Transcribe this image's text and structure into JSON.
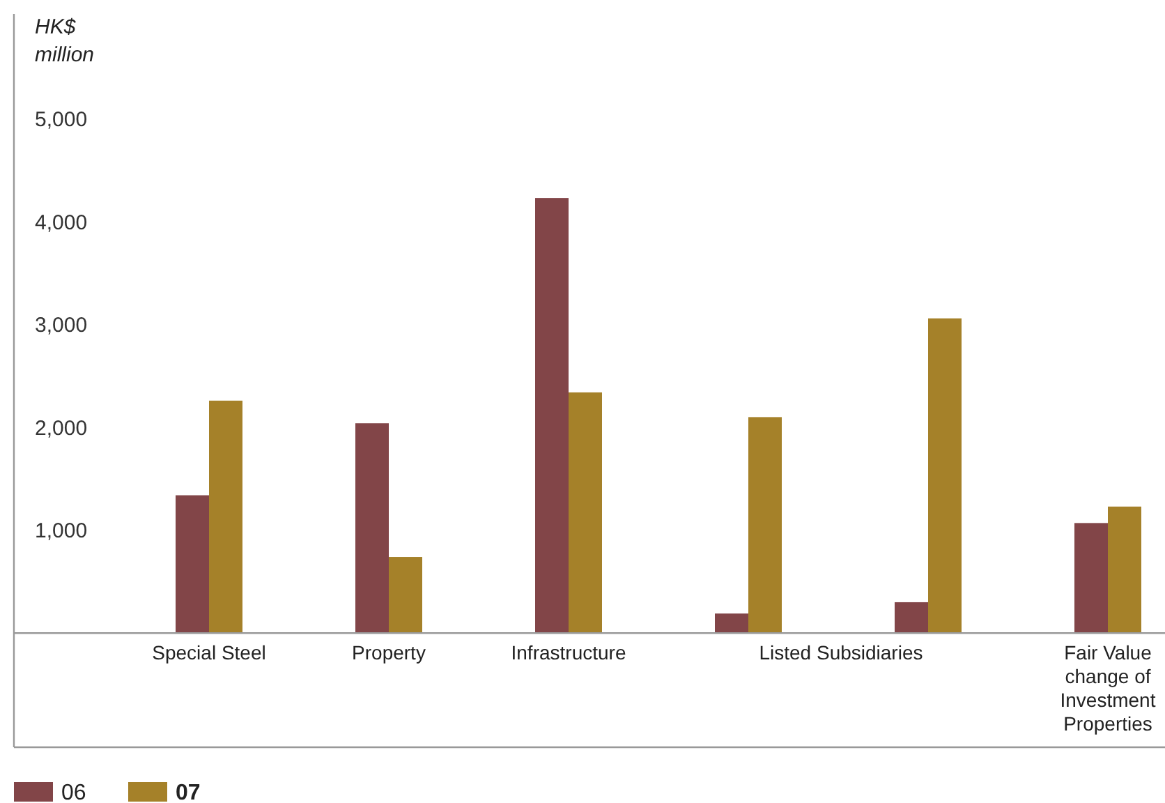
{
  "chart_data": {
    "type": "bar",
    "ylabel": "HK$ million",
    "categories": [
      "Special Steel",
      "Property",
      "Infrastructure",
      null,
      null,
      "Fair Value change of Investment Properties"
    ],
    "series": [
      {
        "name": "06",
        "color": "#824548",
        "values": [
          1340,
          2040,
          4230,
          190,
          300,
          1070
        ]
      },
      {
        "name": "07",
        "color": "#a58129",
        "values": [
          2260,
          740,
          2340,
          2100,
          3060,
          1230
        ]
      }
    ],
    "ylim": [
      -1110,
      6020
    ],
    "yticks": [
      {
        "value": 0,
        "label": null
      },
      {
        "value": 1000,
        "label": "1,000"
      },
      {
        "value": 2000,
        "label": "2,000"
      },
      {
        "value": 3000,
        "label": "3,000"
      },
      {
        "value": 4000,
        "label": "4,000"
      },
      {
        "value": 5000,
        "label": "5,000"
      }
    ],
    "annotations": [
      "Listed Subsidiaries"
    ],
    "legend": "bottom left",
    "grid": false
  }
}
